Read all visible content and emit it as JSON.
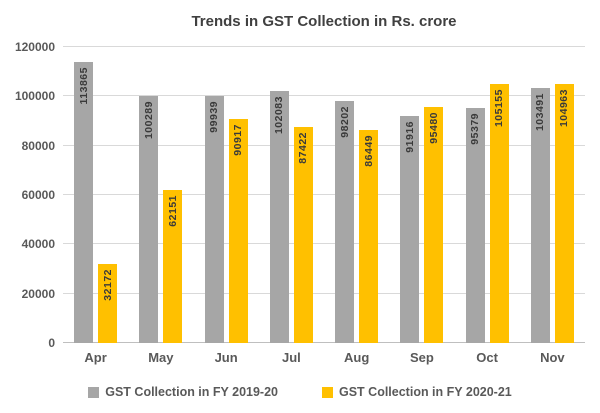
{
  "chart_data": {
    "type": "bar",
    "title": "Trends in GST Collection in Rs. crore",
    "categories": [
      "Apr",
      "May",
      "Jun",
      "Jul",
      "Aug",
      "Sep",
      "Oct",
      "Nov"
    ],
    "series": [
      {
        "name": "GST Collection in FY 2019-20",
        "color": "#a6a6a6",
        "values": [
          113865,
          100289,
          99939,
          102083,
          98202,
          91916,
          95379,
          103491
        ]
      },
      {
        "name": "GST Collection in FY 2020-21",
        "color": "#ffc000",
        "values": [
          32172,
          62151,
          90917,
          87422,
          86449,
          95480,
          105155,
          104963
        ]
      }
    ],
    "xlabel": "",
    "ylabel": "",
    "ylim": [
      0,
      120000
    ],
    "yticks": [
      0,
      20000,
      40000,
      60000,
      80000,
      100000,
      120000
    ],
    "grid": true,
    "legend_position": "bottom",
    "data_labels": true,
    "data_label_orientation": "vertical-bottom-to-top"
  },
  "colors": {
    "title_text": "#404040",
    "axis_text": "#595959",
    "gridline": "#d9d9d9",
    "axis_line": "#bfbfbf",
    "data_label_text": "#3a3a3a",
    "background": "#ffffff"
  }
}
